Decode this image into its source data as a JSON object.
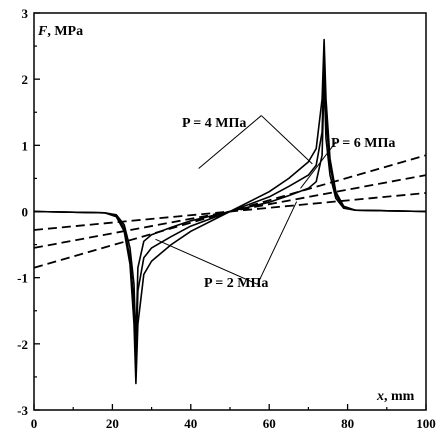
{
  "chart_data": {
    "type": "line",
    "xlabel_var": "x",
    "xlabel_unit": ", mm",
    "ylabel_var": "F",
    "ylabel_unit": ", MPa",
    "xlim": [
      0,
      100
    ],
    "ylim": [
      -3,
      3
    ],
    "x_ticks": [
      0,
      20,
      40,
      60,
      80,
      100
    ],
    "x_tick_labels": [
      "0",
      "20",
      "40",
      "60",
      "80",
      "100"
    ],
    "y_ticks": [
      -3,
      -2,
      -1,
      0,
      1,
      2,
      3
    ],
    "y_tick_labels": [
      "-3",
      "-2",
      "-1",
      "0",
      "1",
      "2",
      "3"
    ],
    "grid": false,
    "annotations": [
      {
        "text": "P = 4 MПa",
        "var": "P",
        "rest": " = 4 MПa",
        "anchor": [
          58,
          1.5
        ]
      },
      {
        "text": "P = 6 MПa",
        "var": "P",
        "rest": " = 6 MПa",
        "anchor": [
          85,
          1.1
        ]
      },
      {
        "text": "P = 2 MПa",
        "var": "P",
        "rest": " = 2 MПa",
        "anchor": [
          56,
          -1.0
        ]
      }
    ],
    "series": [
      {
        "style": "solid",
        "x": [
          0,
          18,
          21,
          23,
          24.5,
          25.5,
          26,
          26.5,
          28,
          30,
          35,
          40,
          50,
          60,
          65,
          70,
          72,
          73.5,
          74,
          74.5,
          75.5,
          77,
          79,
          82,
          100
        ],
        "y": [
          0,
          -0.02,
          -0.08,
          -0.3,
          -0.8,
          -1.7,
          -2.6,
          -1.7,
          -0.95,
          -0.75,
          -0.5,
          -0.3,
          0,
          0.3,
          0.5,
          0.75,
          0.95,
          1.7,
          2.6,
          1.7,
          0.8,
          0.3,
          0.08,
          0.02,
          0
        ]
      },
      {
        "style": "solid",
        "x": [
          0,
          18,
          21,
          23,
          24.5,
          25.5,
          26,
          26.5,
          28,
          30,
          35,
          40,
          50,
          60,
          65,
          70,
          72,
          73.5,
          74,
          74.5,
          75.5,
          77,
          79,
          82,
          100
        ],
        "y": [
          0,
          -0.02,
          -0.06,
          -0.25,
          -0.7,
          -1.4,
          -2.3,
          -1.2,
          -0.7,
          -0.55,
          -0.38,
          -0.22,
          0,
          0.22,
          0.38,
          0.55,
          0.7,
          1.2,
          2.3,
          1.4,
          0.7,
          0.25,
          0.06,
          0.02,
          0
        ]
      },
      {
        "style": "solid",
        "x": [
          0,
          18,
          21,
          23,
          24.5,
          25.5,
          26,
          26.5,
          28,
          30,
          35,
          40,
          50,
          60,
          65,
          70,
          72,
          73.5,
          74,
          74.5,
          75.5,
          77,
          79,
          82,
          100
        ],
        "y": [
          0,
          -0.02,
          -0.05,
          -0.2,
          -0.55,
          -1.1,
          -2.0,
          -0.85,
          -0.45,
          -0.35,
          -0.24,
          -0.14,
          0,
          0.14,
          0.24,
          0.35,
          0.45,
          0.85,
          2.0,
          1.1,
          0.55,
          0.2,
          0.05,
          0.02,
          0
        ]
      },
      {
        "style": "dashed",
        "x": [
          0,
          100
        ],
        "y": [
          -0.85,
          0.85
        ]
      },
      {
        "style": "dashed",
        "x": [
          0,
          100
        ],
        "y": [
          -0.55,
          0.55
        ]
      },
      {
        "style": "dashed",
        "x": [
          0,
          100
        ],
        "y": [
          -0.28,
          0.28
        ]
      }
    ]
  }
}
